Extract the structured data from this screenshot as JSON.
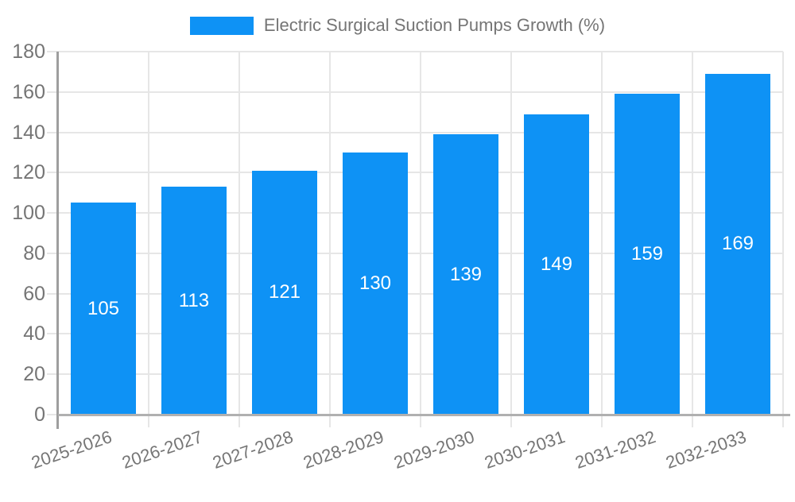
{
  "legend": {
    "series_label": "Electric Surgical Suction Pumps Growth (%)"
  },
  "chart_data": {
    "type": "bar",
    "title": "Electric Surgical Suction Pumps Growth (%)",
    "categories": [
      "2025-2026",
      "2026-2027",
      "2027-2028",
      "2028-2029",
      "2029-2030",
      "2030-2031",
      "2031-2032",
      "2032-2033"
    ],
    "series": [
      {
        "name": "Electric Surgical Suction Pumps Growth (%)",
        "values": [
          105,
          113,
          121,
          130,
          139,
          149,
          159,
          169
        ]
      }
    ],
    "values": [
      105,
      113,
      121,
      130,
      139,
      149,
      159,
      169
    ],
    "value_labels_shown": true,
    "xlabel": "",
    "ylabel": "",
    "ylim": [
      0,
      180
    ],
    "ytick_step": 20,
    "yticks": [
      0,
      20,
      40,
      60,
      80,
      100,
      120,
      140,
      160,
      180
    ],
    "grid": true,
    "legend_position": "top-center",
    "colors": {
      "bar": "#0e92f5",
      "value_label": "#ffffff",
      "text": "#757575",
      "grid": "#e6e6e6",
      "axis": "#9e9e9e",
      "baseline": "#b0b0b0",
      "background": "#ffffff"
    }
  }
}
